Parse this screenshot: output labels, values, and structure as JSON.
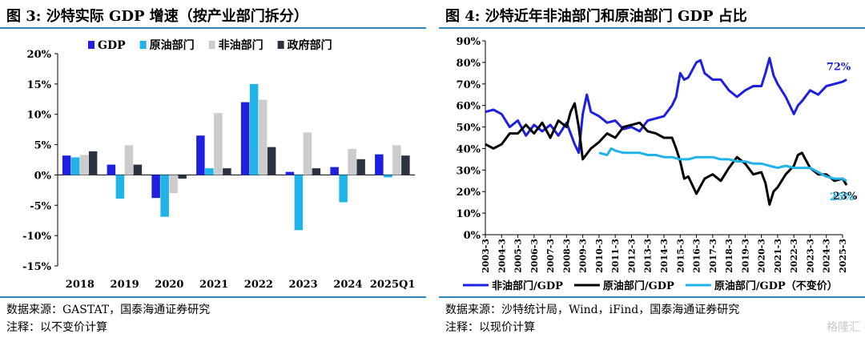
{
  "left": {
    "title": "图 3:  沙特实际 GDP 增速（按产业部门拆分）",
    "source": "数据来源：GASTAT，国泰海通证券研究",
    "note": "注释：以不变价计算",
    "chart_data": {
      "type": "bar",
      "categories": [
        "2018",
        "2019",
        "2020",
        "2021",
        "2022",
        "2023",
        "2024",
        "2025Q1"
      ],
      "series": [
        {
          "name": "GDP",
          "color": "#1f1fe0",
          "values": [
            3.2,
            1.7,
            -3.8,
            6.5,
            12.0,
            0.5,
            1.3,
            3.4
          ]
        },
        {
          "name": "原油部门",
          "color": "#1fb3e8",
          "values": [
            2.9,
            -3.9,
            -6.9,
            1.1,
            15.0,
            -9.1,
            -4.5,
            -0.4
          ]
        },
        {
          "name": "非油部门",
          "color": "#cccccc",
          "values": [
            3.3,
            4.9,
            -3.0,
            10.2,
            12.4,
            7.0,
            4.3,
            4.9
          ]
        },
        {
          "name": "政府部门",
          "color": "#2b3340",
          "values": [
            3.9,
            1.7,
            -0.6,
            1.1,
            4.6,
            1.1,
            2.6,
            3.2
          ]
        }
      ],
      "ylim": [
        -15,
        20
      ],
      "yticks": [
        -15,
        -10,
        -5,
        0,
        5,
        10,
        15,
        20
      ],
      "ytick_labels": [
        "-15%",
        "-10%",
        "-5%",
        "0%",
        "5%",
        "10%",
        "15%",
        "20%"
      ],
      "legend_position": "top",
      "grid": false
    }
  },
  "right": {
    "title": "图 4:  沙特近年非油部门和原油部门 GDP 占比",
    "source": "数据来源：沙特统计局，Wind，iFind，国泰海通证券研究",
    "note": "注释：以现价计算",
    "chart_data": {
      "type": "line",
      "x_labels": [
        "2003-3",
        "2004-3",
        "2005-3",
        "2006-3",
        "2007-3",
        "2008-3",
        "2009-3",
        "2010-3",
        "2011-3",
        "2012-3",
        "2013-3",
        "2014-3",
        "2015-3",
        "2016-3",
        "2017-3",
        "2018-3",
        "2019-3",
        "2020-3",
        "2021-3",
        "2022-3",
        "2023-3",
        "2024-3",
        "2025-3"
      ],
      "x_range": [
        2003.0,
        2025.0
      ],
      "series": [
        {
          "name": "非油部门/GDP",
          "color": "#1f1fe0",
          "end_label": "72%",
          "x": [
            2003.0,
            2003.5,
            2004.0,
            2004.5,
            2005.0,
            2005.5,
            2006.0,
            2006.5,
            2007.0,
            2007.5,
            2008.0,
            2008.5,
            2008.75,
            2009.0,
            2009.25,
            2009.5,
            2010.0,
            2010.5,
            2011.0,
            2011.5,
            2012.0,
            2012.5,
            2013.0,
            2013.5,
            2014.0,
            2014.5,
            2014.75,
            2015.0,
            2015.25,
            2015.5,
            2016.0,
            2016.25,
            2016.5,
            2017.0,
            2017.5,
            2018.0,
            2018.5,
            2019.0,
            2019.5,
            2020.0,
            2020.25,
            2020.5,
            2020.75,
            2021.0,
            2021.5,
            2022.0,
            2022.25,
            2022.5,
            2023.0,
            2023.5,
            2024.0,
            2024.5,
            2025.0,
            2025.25
          ],
          "y": [
            57,
            58,
            56,
            50,
            53,
            46,
            51,
            48,
            51,
            46,
            52,
            42,
            38,
            56,
            65,
            57,
            55,
            52,
            53,
            49,
            50,
            48,
            53,
            54,
            55,
            60,
            64,
            75,
            72,
            73,
            80,
            81,
            75,
            72,
            72,
            67,
            64,
            67,
            69,
            69,
            75,
            82,
            74,
            70,
            64,
            56,
            60,
            62,
            67,
            65,
            69,
            70,
            71,
            72
          ]
        },
        {
          "name": "原油部门/GDP",
          "color": "#000000",
          "end_label": "23%",
          "x": [
            2003.0,
            2003.5,
            2004.0,
            2004.5,
            2005.0,
            2005.5,
            2006.0,
            2006.5,
            2007.0,
            2007.5,
            2008.0,
            2008.25,
            2008.5,
            2008.75,
            2009.0,
            2009.5,
            2010.0,
            2010.5,
            2011.0,
            2011.5,
            2012.0,
            2012.5,
            2013.0,
            2013.5,
            2014.0,
            2014.5,
            2014.75,
            2015.0,
            2015.25,
            2015.5,
            2016.0,
            2016.5,
            2017.0,
            2017.5,
            2018.0,
            2018.5,
            2019.0,
            2019.5,
            2020.0,
            2020.25,
            2020.5,
            2020.75,
            2021.0,
            2021.5,
            2022.0,
            2022.25,
            2022.5,
            2023.0,
            2023.5,
            2024.0,
            2024.5,
            2025.0,
            2025.25
          ],
          "y": [
            42,
            40,
            42,
            47,
            47,
            51,
            47,
            52,
            45,
            53,
            50,
            57,
            61,
            50,
            35,
            40,
            43,
            47,
            45,
            50,
            51,
            52,
            48,
            47,
            45,
            45,
            40,
            34,
            26,
            27,
            19,
            26,
            28,
            25,
            31,
            36,
            33,
            28,
            29,
            24,
            14,
            20,
            22,
            28,
            32,
            37,
            38,
            31,
            28,
            28,
            25,
            26,
            23
          ]
        },
        {
          "name": "原油部门/GDP（不变价）",
          "color": "#1fb3e8",
          "end_label": "25%",
          "x": [
            2010.0,
            2010.5,
            2010.75,
            2011.0,
            2011.5,
            2012.0,
            2012.5,
            2013.0,
            2013.5,
            2014.0,
            2014.5,
            2015.0,
            2015.5,
            2016.0,
            2016.5,
            2017.0,
            2017.5,
            2018.0,
            2018.5,
            2019.0,
            2019.5,
            2020.0,
            2020.5,
            2021.0,
            2021.5,
            2022.0,
            2022.5,
            2023.0,
            2023.5,
            2024.0,
            2024.5,
            2025.0,
            2025.25
          ],
          "y": [
            38,
            37,
            40,
            39,
            38,
            38,
            38,
            37,
            37,
            36,
            36,
            35,
            35,
            36,
            36,
            36,
            35,
            35,
            34,
            34,
            33,
            33,
            32,
            31,
            32,
            31,
            31,
            31,
            29,
            27,
            26,
            26,
            25
          ]
        }
      ],
      "ylim": [
        0,
        90
      ],
      "yticks": [
        0,
        10,
        20,
        30,
        40,
        50,
        60,
        70,
        80,
        90
      ],
      "ytick_labels": [
        "0%",
        "10%",
        "20%",
        "30%",
        "40%",
        "50%",
        "60%",
        "70%",
        "80%",
        "90%"
      ],
      "legend_position": "bottom",
      "grid": false
    }
  },
  "watermark": "格隆汇"
}
